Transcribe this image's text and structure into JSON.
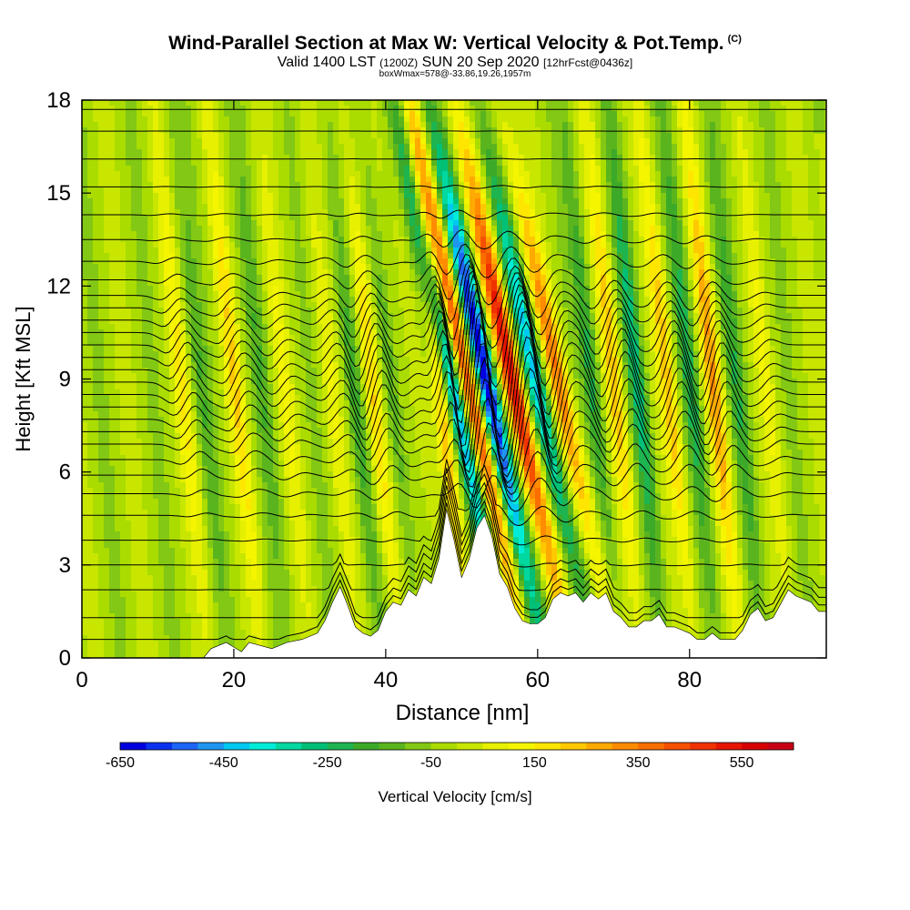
{
  "title": {
    "main": "Wind-Parallel Section at Max W: Vertical Velocity & Pot.Temp.",
    "copyright": "(C)",
    "valid_prefix": "Valid 1400 LST",
    "valid_utc": "(1200Z)",
    "valid_date": "SUN 20 Sep 2020",
    "forecast": "[12hrFcst@0436z]",
    "box_info": "boxWmax=578@-33.86,19.26,1957m"
  },
  "chart_data": {
    "type": "heatmap",
    "xlabel": "Distance [nm]",
    "ylabel": "Height [Kft MSL]",
    "xlim": [
      0,
      98
    ],
    "ylim": [
      0,
      18
    ],
    "x_ticks": [
      "0",
      "20",
      "40",
      "60",
      "80"
    ],
    "y_ticks": [
      "0",
      "3",
      "6",
      "9",
      "12",
      "15",
      "18"
    ],
    "colorbar": {
      "label": "Vertical Velocity [cm/s]",
      "range": [
        -650,
        650
      ],
      "step": 50,
      "tick_labels": [
        "-650",
        "-450",
        "-250",
        "-50",
        "150",
        "350",
        "550"
      ]
    },
    "w_bands": [
      {
        "x": 13.5,
        "w": 150
      },
      {
        "x": 16,
        "w": -100
      },
      {
        "x": 20.5,
        "w": 200
      },
      {
        "x": 24,
        "w": -100
      },
      {
        "x": 27,
        "w": 100
      },
      {
        "x": 33,
        "w": 100
      },
      {
        "x": 36,
        "w": -150
      },
      {
        "x": 38.5,
        "w": 250
      },
      {
        "x": 41,
        "w": -150
      },
      {
        "x": 44.5,
        "w": 100
      },
      {
        "x": 47.5,
        "w": 250
      },
      {
        "x": 49.5,
        "w": -500
      },
      {
        "x": 51.5,
        "w": 550
      },
      {
        "x": 54,
        "w": -650
      },
      {
        "x": 57.5,
        "w": 578
      },
      {
        "x": 60.5,
        "w": -400
      },
      {
        "x": 63.5,
        "w": 350
      },
      {
        "x": 67.5,
        "w": -200
      },
      {
        "x": 70.5,
        "w": 250
      },
      {
        "x": 73.5,
        "w": -250
      },
      {
        "x": 77.5,
        "w": 250
      },
      {
        "x": 80.5,
        "w": -200
      },
      {
        "x": 83.5,
        "w": 300
      },
      {
        "x": 86.5,
        "w": -150
      },
      {
        "x": 90.5,
        "w": 100
      }
    ],
    "terrain": [
      [
        0,
        0
      ],
      [
        16,
        0
      ],
      [
        17,
        0.3
      ],
      [
        19,
        0.5
      ],
      [
        21,
        0.2
      ],
      [
        22,
        0.5
      ],
      [
        25,
        0.3
      ],
      [
        27,
        0.5
      ],
      [
        29,
        0.6
      ],
      [
        31,
        0.8
      ],
      [
        32,
        1.2
      ],
      [
        33,
        1.8
      ],
      [
        34,
        2.3
      ],
      [
        35,
        1.7
      ],
      [
        36,
        1.0
      ],
      [
        37,
        0.8
      ],
      [
        38,
        0.7
      ],
      [
        39,
        0.9
      ],
      [
        40,
        1.5
      ],
      [
        41,
        1.8
      ],
      [
        42,
        1.7
      ],
      [
        43,
        2.2
      ],
      [
        44,
        2.0
      ],
      [
        45,
        2.6
      ],
      [
        46,
        2.4
      ],
      [
        47,
        3.2
      ],
      [
        48,
        4.8
      ],
      [
        49,
        3.8
      ],
      [
        50,
        2.6
      ],
      [
        51,
        3.2
      ],
      [
        52,
        4.2
      ],
      [
        53,
        4.6
      ],
      [
        54,
        3.9
      ],
      [
        55,
        2.7
      ],
      [
        56,
        2.3
      ],
      [
        57,
        1.6
      ],
      [
        58,
        1.2
      ],
      [
        59,
        1.1
      ],
      [
        60,
        1.1
      ],
      [
        61,
        1.3
      ],
      [
        62,
        1.9
      ],
      [
        63,
        2.1
      ],
      [
        64,
        2.0
      ],
      [
        65,
        2.1
      ],
      [
        66,
        1.8
      ],
      [
        67,
        2.1
      ],
      [
        68,
        1.9
      ],
      [
        69,
        2.1
      ],
      [
        70,
        1.5
      ],
      [
        71,
        1.3
      ],
      [
        72,
        1.0
      ],
      [
        73,
        1.0
      ],
      [
        74,
        1.2
      ],
      [
        75,
        1.2
      ],
      [
        76,
        1.4
      ],
      [
        77,
        1.0
      ],
      [
        78,
        1.0
      ],
      [
        79,
        0.9
      ],
      [
        80,
        0.8
      ],
      [
        81,
        0.6
      ],
      [
        82,
        0.6
      ],
      [
        83,
        0.8
      ],
      [
        84,
        0.6
      ],
      [
        86,
        0.6
      ],
      [
        87,
        0.9
      ],
      [
        88,
        1.4
      ],
      [
        89,
        1.6
      ],
      [
        90,
        1.2
      ],
      [
        91,
        1.3
      ],
      [
        93,
        2.2
      ],
      [
        94,
        2.0
      ],
      [
        96,
        1.8
      ],
      [
        97,
        1.5
      ],
      [
        98,
        1.5
      ]
    ],
    "isentropes_z": [
      0.6,
      1.3,
      2.2,
      3.0,
      3.8,
      4.6,
      5.3,
      5.9,
      6.4,
      6.9,
      7.3,
      7.7,
      8.1,
      8.5,
      8.9,
      9.3,
      9.7,
      10.1,
      10.5,
      10.9,
      11.3,
      11.7,
      12.2,
      12.8,
      13.5,
      14.3,
      15.2,
      16.1,
      17.0,
      17.7
    ]
  }
}
